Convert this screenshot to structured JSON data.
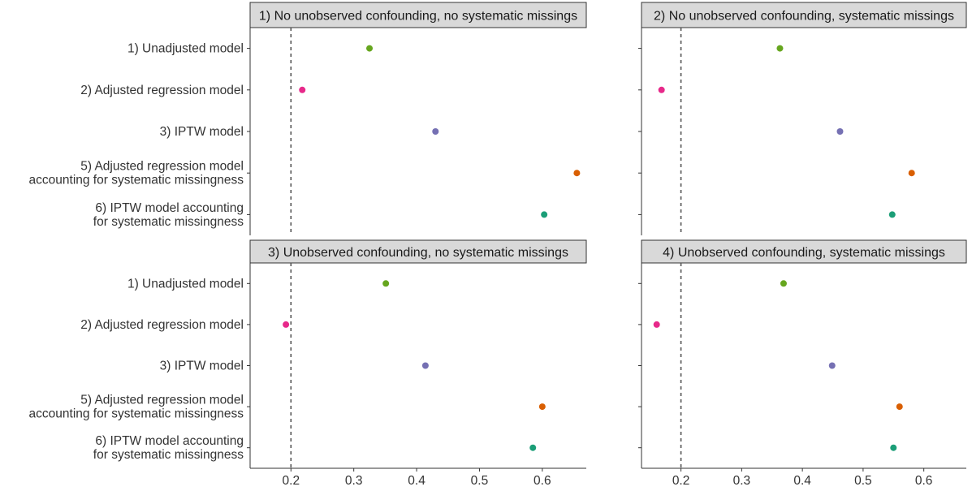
{
  "chart_data": {
    "type": "scatter",
    "layout": "2x2 facet grid",
    "x_ticks": [
      0.2,
      0.3,
      0.4,
      0.5,
      0.6
    ],
    "x_tick_labels": [
      "0.2",
      "0.3",
      "0.4",
      "0.5",
      "0.6"
    ],
    "xlim": [
      0.135,
      0.67
    ],
    "reference_line": {
      "x": 0.2,
      "style": "dashed",
      "color": "#555555"
    },
    "grid": false,
    "categories": [
      "1) Unadjusted model",
      "2) Adjusted regression model",
      "3) IPTW model",
      "5) Adjusted regression model\naccounting for systematic missingness",
      "6) IPTW model accounting\nfor systematic missingness"
    ],
    "colors": [
      "#66a61e",
      "#e7298a",
      "#7570b3",
      "#d95f02",
      "#1b9e77"
    ],
    "panels": [
      {
        "title": "1) No unobserved confounding, no systematic missings",
        "values": [
          0.325,
          0.218,
          0.43,
          0.655,
          0.603
        ]
      },
      {
        "title": "2) No unobserved confounding, systematic missings",
        "values": [
          0.363,
          0.168,
          0.462,
          0.58,
          0.548
        ]
      },
      {
        "title": "3) Unobserved confounding, no systematic missings",
        "values": [
          0.351,
          0.192,
          0.414,
          0.6,
          0.585
        ]
      },
      {
        "title": "4) Unobserved confounding, systematic missings",
        "values": [
          0.369,
          0.16,
          0.449,
          0.56,
          0.55
        ]
      }
    ]
  }
}
